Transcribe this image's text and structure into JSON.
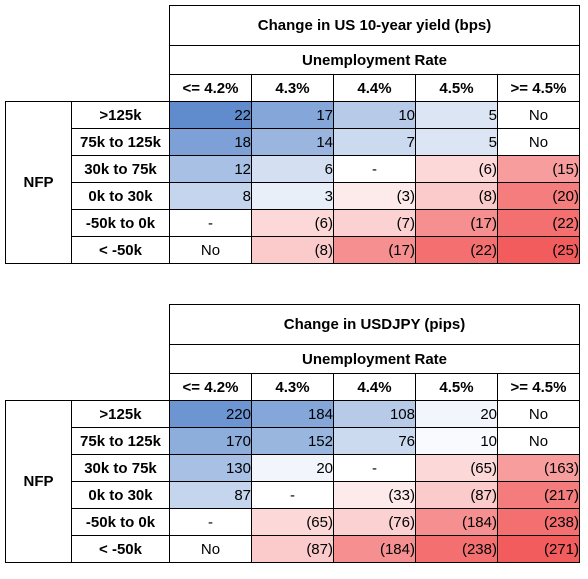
{
  "chart_data": [
    {
      "type": "table",
      "title": "Change in US 10-year yield (bps)",
      "column_group": "Unemployment Rate",
      "row_group": "NFP",
      "columns": [
        "<= 4.2%",
        "4.3%",
        "4.4%",
        "4.5%",
        ">= 4.5%"
      ],
      "rows": [
        ">125k",
        "75k to 125k",
        "30k to 75k",
        "0k to 30k",
        "-50k to 0k",
        "< -50k"
      ],
      "values": [
        [
          22,
          17,
          10,
          5,
          "No"
        ],
        [
          18,
          14,
          7,
          5,
          "No"
        ],
        [
          12,
          6,
          "-",
          -6,
          -15
        ],
        [
          8,
          3,
          -3,
          -8,
          -20
        ],
        [
          "-",
          -6,
          -7,
          -17,
          -22
        ],
        [
          "No",
          -8,
          -17,
          -22,
          -25
        ]
      ],
      "color_scale": {
        "positive": "#4a7cc6",
        "negative": "#f25c5c",
        "neutral": "#ffffff",
        "max_abs": 25
      }
    },
    {
      "type": "table",
      "title": "Change in USDJPY (pips)",
      "column_group": "Unemployment Rate",
      "row_group": "NFP",
      "columns": [
        "<= 4.2%",
        "4.3%",
        "4.4%",
        "4.5%",
        ">= 4.5%"
      ],
      "rows": [
        ">125k",
        "75k to 125k",
        "30k to 75k",
        "0k to 30k",
        "-50k to 0k",
        "< -50k"
      ],
      "values": [
        [
          220,
          184,
          108,
          20,
          "No"
        ],
        [
          170,
          152,
          76,
          10,
          "No"
        ],
        [
          130,
          20,
          "-",
          -65,
          -163
        ],
        [
          87,
          "-",
          -33,
          -87,
          -217
        ],
        [
          "-",
          -65,
          -76,
          -184,
          -238
        ],
        [
          "No",
          -87,
          -184,
          -238,
          -271
        ]
      ],
      "color_scale": {
        "positive": "#4a7cc6",
        "negative": "#f25c5c",
        "neutral": "#ffffff",
        "max_abs": 271
      }
    }
  ]
}
